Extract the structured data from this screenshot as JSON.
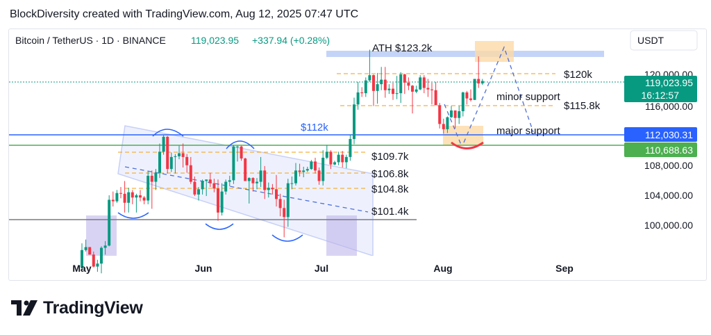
{
  "header": {
    "title": "BlockDiversity created with TradingView.com, Aug 12, 2025 07:47 UTC"
  },
  "symbol": {
    "name": "Bitcoin / TetherUS · 1D · BINANCE",
    "price": "119,023.95",
    "change": "+337.94 (+0.28%)",
    "currency": "USDT",
    "countdown": "16:12:57"
  },
  "colors": {
    "up": "#089981",
    "down": "#f23645",
    "blue_line": "#2962ff",
    "green_line": "#4caf50",
    "orange": "#f59e0b"
  },
  "chart_data": {
    "type": "candlestick",
    "x_labels": [
      "May",
      "Jun",
      "Jul",
      "Aug",
      "Sep"
    ],
    "y_ticks": [
      "100,000.00",
      "104,000.00",
      "108,000.00",
      "116,000.00",
      "120,000.00"
    ],
    "ylim": [
      96000,
      125000
    ],
    "candles": [
      {
        "date": "2025-05-01",
        "o": 94200,
        "h": 97400,
        "l": 94000,
        "c": 96500
      },
      {
        "date": "2025-05-02",
        "o": 96500,
        "h": 97900,
        "l": 96300,
        "c": 96900
      },
      {
        "date": "2025-05-03",
        "o": 96900,
        "h": 96900,
        "l": 95900,
        "c": 95900
      },
      {
        "date": "2025-05-04",
        "o": 95900,
        "h": 96300,
        "l": 94200,
        "c": 94300
      },
      {
        "date": "2025-05-05",
        "o": 94300,
        "h": 95200,
        "l": 93600,
        "c": 94700
      },
      {
        "date": "2025-05-06",
        "o": 94700,
        "h": 97000,
        "l": 93400,
        "c": 96800
      },
      {
        "date": "2025-05-07",
        "o": 96800,
        "h": 97700,
        "l": 95900,
        "c": 97100
      },
      {
        "date": "2025-05-08",
        "o": 97100,
        "h": 103800,
        "l": 97000,
        "c": 103200
      },
      {
        "date": "2025-05-09",
        "o": 103200,
        "h": 104300,
        "l": 102300,
        "c": 103000
      },
      {
        "date": "2025-05-10",
        "o": 103000,
        "h": 104500,
        "l": 102800,
        "c": 104100
      },
      {
        "date": "2025-05-11",
        "o": 104100,
        "h": 104900,
        "l": 103400,
        "c": 104000
      },
      {
        "date": "2025-05-12",
        "o": 104000,
        "h": 105700,
        "l": 101500,
        "c": 102800
      },
      {
        "date": "2025-05-13",
        "o": 102800,
        "h": 104800,
        "l": 101500,
        "c": 104200
      },
      {
        "date": "2025-05-14",
        "o": 104200,
        "h": 104500,
        "l": 102600,
        "c": 103500
      },
      {
        "date": "2025-05-15",
        "o": 103500,
        "h": 104000,
        "l": 101500,
        "c": 103800
      },
      {
        "date": "2025-05-16",
        "o": 103800,
        "h": 104500,
        "l": 103000,
        "c": 103500
      },
      {
        "date": "2025-05-17",
        "o": 103500,
        "h": 103700,
        "l": 102600,
        "c": 103100
      },
      {
        "date": "2025-05-18",
        "o": 103100,
        "h": 107000,
        "l": 102600,
        "c": 106400
      },
      {
        "date": "2025-05-19",
        "o": 106400,
        "h": 107100,
        "l": 102000,
        "c": 105600
      },
      {
        "date": "2025-05-20",
        "o": 105600,
        "h": 107300,
        "l": 104500,
        "c": 106800
      },
      {
        "date": "2025-05-21",
        "o": 106800,
        "h": 110700,
        "l": 106100,
        "c": 109600
      },
      {
        "date": "2025-05-22",
        "o": 109600,
        "h": 111900,
        "l": 109200,
        "c": 111600
      },
      {
        "date": "2025-05-23",
        "o": 111600,
        "h": 111700,
        "l": 106700,
        "c": 107300
      },
      {
        "date": "2025-05-24",
        "o": 107300,
        "h": 109500,
        "l": 106900,
        "c": 108900
      },
      {
        "date": "2025-05-25",
        "o": 108900,
        "h": 109300,
        "l": 106700,
        "c": 109000
      },
      {
        "date": "2025-05-26",
        "o": 109000,
        "h": 110400,
        "l": 108600,
        "c": 109400
      },
      {
        "date": "2025-05-27",
        "o": 109400,
        "h": 110700,
        "l": 107500,
        "c": 108900
      },
      {
        "date": "2025-05-28",
        "o": 108900,
        "h": 109300,
        "l": 106800,
        "c": 107800
      },
      {
        "date": "2025-05-29",
        "o": 107800,
        "h": 108900,
        "l": 105300,
        "c": 105600
      },
      {
        "date": "2025-05-30",
        "o": 105600,
        "h": 106300,
        "l": 103700,
        "c": 103900
      },
      {
        "date": "2025-05-31",
        "o": 103900,
        "h": 104900,
        "l": 103100,
        "c": 104600
      },
      {
        "date": "2025-06-01",
        "o": 104600,
        "h": 105900,
        "l": 103900,
        "c": 105700
      },
      {
        "date": "2025-06-02",
        "o": 105700,
        "h": 105900,
        "l": 103700,
        "c": 105900
      },
      {
        "date": "2025-06-03",
        "o": 105900,
        "h": 106800,
        "l": 104900,
        "c": 105400
      },
      {
        "date": "2025-06-04",
        "o": 105400,
        "h": 106000,
        "l": 104200,
        "c": 104700
      },
      {
        "date": "2025-06-05",
        "o": 104700,
        "h": 105900,
        "l": 100400,
        "c": 101500
      },
      {
        "date": "2025-06-06",
        "o": 101500,
        "h": 105400,
        "l": 101100,
        "c": 104300
      },
      {
        "date": "2025-06-07",
        "o": 104300,
        "h": 105900,
        "l": 103900,
        "c": 105600
      },
      {
        "date": "2025-06-08",
        "o": 105600,
        "h": 106400,
        "l": 105000,
        "c": 105800
      },
      {
        "date": "2025-06-09",
        "o": 105800,
        "h": 110500,
        "l": 105300,
        "c": 110300
      },
      {
        "date": "2025-06-10",
        "o": 110300,
        "h": 110400,
        "l": 108300,
        "c": 110300
      },
      {
        "date": "2025-06-11",
        "o": 110300,
        "h": 110400,
        "l": 108400,
        "c": 108700
      },
      {
        "date": "2025-06-12",
        "o": 108700,
        "h": 108800,
        "l": 105700,
        "c": 105700
      },
      {
        "date": "2025-06-13",
        "o": 105700,
        "h": 106200,
        "l": 102700,
        "c": 106100
      },
      {
        "date": "2025-06-14",
        "o": 106100,
        "h": 106200,
        "l": 104300,
        "c": 105400
      },
      {
        "date": "2025-06-15",
        "o": 105400,
        "h": 106100,
        "l": 104600,
        "c": 105600
      },
      {
        "date": "2025-06-16",
        "o": 105600,
        "h": 108900,
        "l": 104900,
        "c": 107100
      },
      {
        "date": "2025-06-17",
        "o": 107100,
        "h": 107700,
        "l": 103300,
        "c": 104500
      },
      {
        "date": "2025-06-18",
        "o": 104500,
        "h": 105500,
        "l": 103500,
        "c": 104800
      },
      {
        "date": "2025-06-19",
        "o": 104800,
        "h": 105300,
        "l": 103900,
        "c": 104600
      },
      {
        "date": "2025-06-20",
        "o": 104600,
        "h": 106500,
        "l": 102300,
        "c": 103300
      },
      {
        "date": "2025-06-21",
        "o": 103300,
        "h": 104000,
        "l": 101000,
        "c": 102100
      },
      {
        "date": "2025-06-22",
        "o": 102100,
        "h": 103200,
        "l": 98200,
        "c": 100900
      },
      {
        "date": "2025-06-23",
        "o": 100900,
        "h": 106000,
        "l": 99600,
        "c": 105400
      },
      {
        "date": "2025-06-24",
        "o": 105400,
        "h": 106300,
        "l": 104600,
        "c": 105400
      },
      {
        "date": "2025-06-25",
        "o": 105400,
        "h": 108100,
        "l": 105100,
        "c": 107100
      },
      {
        "date": "2025-06-26",
        "o": 107100,
        "h": 108000,
        "l": 106300,
        "c": 106900
      },
      {
        "date": "2025-06-27",
        "o": 106900,
        "h": 107600,
        "l": 106200,
        "c": 107100
      },
      {
        "date": "2025-06-28",
        "o": 107100,
        "h": 107600,
        "l": 106900,
        "c": 107300
      },
      {
        "date": "2025-06-29",
        "o": 107300,
        "h": 108500,
        "l": 107200,
        "c": 108300
      },
      {
        "date": "2025-06-30",
        "o": 108300,
        "h": 108800,
        "l": 106700,
        "c": 107100
      },
      {
        "date": "2025-07-01",
        "o": 107100,
        "h": 107500,
        "l": 105200,
        "c": 105700
      },
      {
        "date": "2025-07-02",
        "o": 105700,
        "h": 109800,
        "l": 105100,
        "c": 108800
      },
      {
        "date": "2025-07-03",
        "o": 108800,
        "h": 110500,
        "l": 108600,
        "c": 109600
      },
      {
        "date": "2025-07-04",
        "o": 109600,
        "h": 109800,
        "l": 107300,
        "c": 107900
      },
      {
        "date": "2025-07-05",
        "o": 107900,
        "h": 108400,
        "l": 107800,
        "c": 108200
      },
      {
        "date": "2025-07-06",
        "o": 108200,
        "h": 109600,
        "l": 107800,
        "c": 109200
      },
      {
        "date": "2025-07-07",
        "o": 109200,
        "h": 109700,
        "l": 107500,
        "c": 108200
      },
      {
        "date": "2025-07-08",
        "o": 108200,
        "h": 109200,
        "l": 107400,
        "c": 108900
      },
      {
        "date": "2025-07-09",
        "o": 108900,
        "h": 111900,
        "l": 108400,
        "c": 111300
      },
      {
        "date": "2025-07-10",
        "o": 111300,
        "h": 116800,
        "l": 110600,
        "c": 115900
      },
      {
        "date": "2025-07-11",
        "o": 115900,
        "h": 118900,
        "l": 115200,
        "c": 117500
      },
      {
        "date": "2025-07-12",
        "o": 117500,
        "h": 118200,
        "l": 116900,
        "c": 117400
      },
      {
        "date": "2025-07-13",
        "o": 117400,
        "h": 119500,
        "l": 116900,
        "c": 119100
      },
      {
        "date": "2025-07-14",
        "o": 119100,
        "h": 123200,
        "l": 118900,
        "c": 119800
      },
      {
        "date": "2025-07-15",
        "o": 119800,
        "h": 119900,
        "l": 115700,
        "c": 117700
      },
      {
        "date": "2025-07-16",
        "o": 117700,
        "h": 120100,
        "l": 116000,
        "c": 118600
      },
      {
        "date": "2025-07-17",
        "o": 118600,
        "h": 120900,
        "l": 117800,
        "c": 119200
      },
      {
        "date": "2025-07-18",
        "o": 119200,
        "h": 120900,
        "l": 116800,
        "c": 117800
      },
      {
        "date": "2025-07-19",
        "o": 117800,
        "h": 118600,
        "l": 117300,
        "c": 118000
      },
      {
        "date": "2025-07-20",
        "o": 118000,
        "h": 118800,
        "l": 116500,
        "c": 117300
      },
      {
        "date": "2025-07-21",
        "o": 117300,
        "h": 119700,
        "l": 116600,
        "c": 117400
      },
      {
        "date": "2025-07-22",
        "o": 117400,
        "h": 120200,
        "l": 116100,
        "c": 119900
      },
      {
        "date": "2025-07-23",
        "o": 119900,
        "h": 120000,
        "l": 117300,
        "c": 118800
      },
      {
        "date": "2025-07-24",
        "o": 118800,
        "h": 119500,
        "l": 117800,
        "c": 118400
      },
      {
        "date": "2025-07-25",
        "o": 118400,
        "h": 118500,
        "l": 114700,
        "c": 117600
      },
      {
        "date": "2025-07-26",
        "o": 117600,
        "h": 118400,
        "l": 117400,
        "c": 117900
      },
      {
        "date": "2025-07-27",
        "o": 117900,
        "h": 119800,
        "l": 117800,
        "c": 119500
      },
      {
        "date": "2025-07-28",
        "o": 119500,
        "h": 119800,
        "l": 117400,
        "c": 118100
      },
      {
        "date": "2025-07-29",
        "o": 118100,
        "h": 119300,
        "l": 116900,
        "c": 117900
      },
      {
        "date": "2025-07-30",
        "o": 117900,
        "h": 118800,
        "l": 115900,
        "c": 117800
      },
      {
        "date": "2025-07-31",
        "o": 117800,
        "h": 118900,
        "l": 115800,
        "c": 115800
      },
      {
        "date": "2025-08-01",
        "o": 115800,
        "h": 116100,
        "l": 112700,
        "c": 113300
      },
      {
        "date": "2025-08-02",
        "o": 113300,
        "h": 114000,
        "l": 112000,
        "c": 112600
      },
      {
        "date": "2025-08-03",
        "o": 112600,
        "h": 114300,
        "l": 112100,
        "c": 114200
      },
      {
        "date": "2025-08-04",
        "o": 114200,
        "h": 115700,
        "l": 114100,
        "c": 115100
      },
      {
        "date": "2025-08-05",
        "o": 115100,
        "h": 115100,
        "l": 112700,
        "c": 114100
      },
      {
        "date": "2025-08-06",
        "o": 114100,
        "h": 115700,
        "l": 113300,
        "c": 115000
      },
      {
        "date": "2025-08-07",
        "o": 115000,
        "h": 117600,
        "l": 114300,
        "c": 117500
      },
      {
        "date": "2025-08-08",
        "o": 117500,
        "h": 117700,
        "l": 115900,
        "c": 116700
      },
      {
        "date": "2025-08-09",
        "o": 116700,
        "h": 117900,
        "l": 116300,
        "c": 116500
      },
      {
        "date": "2025-08-10",
        "o": 116500,
        "h": 119300,
        "l": 116500,
        "c": 119300
      },
      {
        "date": "2025-08-11",
        "o": 119300,
        "h": 122300,
        "l": 118100,
        "c": 118700
      },
      {
        "date": "2025-08-12",
        "o": 118700,
        "h": 119300,
        "l": 118500,
        "c": 119024
      }
    ],
    "levels": [
      {
        "label": "$120k",
        "price": 120000
      },
      {
        "label": "$115.8k",
        "price": 115800
      },
      {
        "label": "$109.7k",
        "price": 109700
      },
      {
        "label": "$106.8k",
        "price": 106800
      },
      {
        "label": "$104.8k",
        "price": 104800
      },
      {
        "label": "$101.4k",
        "price": 101400
      }
    ],
    "price_tags": [
      {
        "label": "119,023.95",
        "price": 119024
      },
      {
        "label": "112,030.31",
        "price": 112030
      },
      {
        "label": "110,688.63",
        "price": 110689
      }
    ],
    "annotations": {
      "ath": "ATH $123.2k",
      "blue_level": "$112k",
      "minor_support": "minor support",
      "major_support": "major support"
    }
  },
  "footer": {
    "brand": "TradingView"
  }
}
